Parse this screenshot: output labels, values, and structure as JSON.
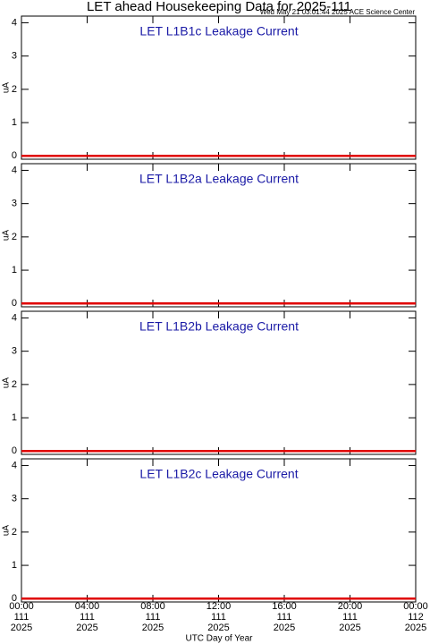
{
  "title": "LET ahead Housekeeping Data for 2025-111",
  "subtitle": "Wed May 21 03:01:44 2025 ACE Science Center",
  "x_axis": {
    "label": "UTC Day of Year",
    "lim": [
      0,
      24
    ],
    "ticks": [
      {
        "value": 0,
        "label": "00:00\n111\n2025"
      },
      {
        "value": 4,
        "label": "04:00\n111\n2025"
      },
      {
        "value": 8,
        "label": "08:00\n111\n2025"
      },
      {
        "value": 12,
        "label": "12:00\n111\n2025"
      },
      {
        "value": 16,
        "label": "16:00\n111\n2025"
      },
      {
        "value": 20,
        "label": "20:00\n111\n2025"
      },
      {
        "value": 24,
        "label": "00:00\n112\n2025"
      }
    ]
  },
  "chart_data": [
    {
      "type": "line",
      "title": "LET L1B1c Leakage Current",
      "ylabel": "uA",
      "x": [
        0,
        24
      ],
      "values": [
        0,
        0
      ],
      "color": "#e00000",
      "ylim": [
        -0.1,
        4.2
      ],
      "yticks": [
        0,
        1,
        2,
        3,
        4
      ]
    },
    {
      "type": "line",
      "title": "LET L1B2a Leakage Current",
      "ylabel": "uA",
      "x": [
        0,
        24
      ],
      "values": [
        0,
        0
      ],
      "color": "#e00000",
      "ylim": [
        -0.1,
        4.2
      ],
      "yticks": [
        0,
        1,
        2,
        3,
        4
      ]
    },
    {
      "type": "line",
      "title": "LET L1B2b Leakage Current",
      "ylabel": "uA",
      "x": [
        0,
        24
      ],
      "values": [
        0,
        0
      ],
      "color": "#e00000",
      "ylim": [
        -0.1,
        4.2
      ],
      "yticks": [
        0,
        1,
        2,
        3,
        4
      ]
    },
    {
      "type": "line",
      "title": "LET L1B2c Leakage Current",
      "ylabel": "uA",
      "x": [
        0,
        24
      ],
      "values": [
        0,
        0
      ],
      "color": "#e00000",
      "ylim": [
        -0.1,
        4.2
      ],
      "yticks": [
        0,
        1,
        2,
        3,
        4
      ]
    }
  ]
}
